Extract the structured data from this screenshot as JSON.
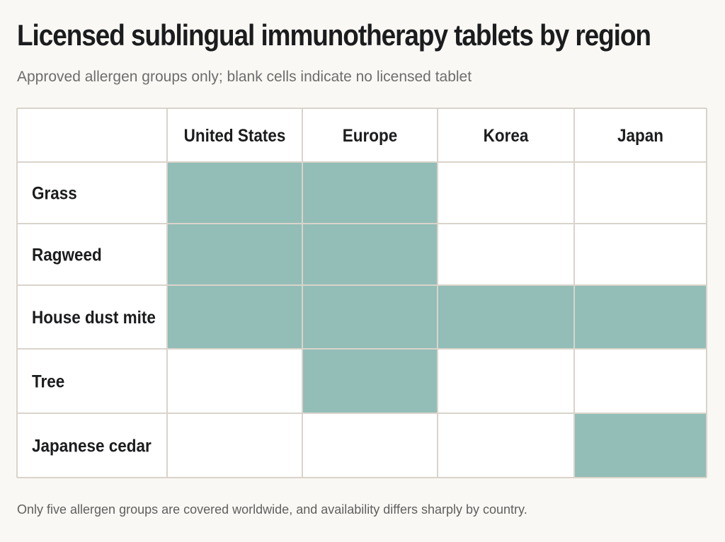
{
  "chart_data": {
    "type": "heatmap",
    "title": "Licensed sublingual immunotherapy tablets by region",
    "subtitle": "Approved allergen groups only; blank cells indicate no licensed tablet",
    "footnote": "Only five allergen groups are covered worldwide, and availability differs sharply by country.",
    "columns": [
      "United States",
      "Europe",
      "Korea",
      "Japan"
    ],
    "rows": [
      "Grass",
      "Ragweed",
      "House dust mite",
      "Tree",
      "Japanese cedar"
    ],
    "values": [
      [
        1,
        1,
        0,
        0
      ],
      [
        1,
        1,
        0,
        0
      ],
      [
        1,
        1,
        1,
        1
      ],
      [
        0,
        1,
        0,
        0
      ],
      [
        0,
        0,
        0,
        1
      ]
    ],
    "colors": {
      "licensed": "#93bdb7",
      "blank": "#ffffff",
      "grid": "#d9d4cb",
      "background": "#faf8f4"
    }
  }
}
